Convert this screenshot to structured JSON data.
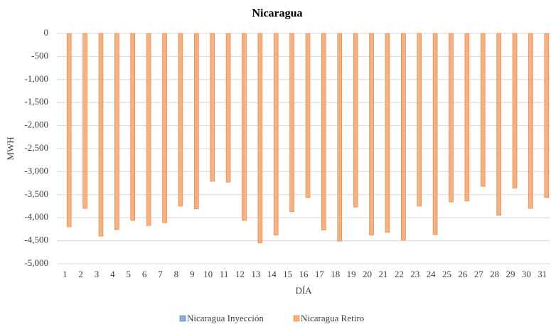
{
  "chart_data": {
    "type": "bar",
    "title": "Nicaragua",
    "x_label": "DÍA",
    "y_label": "MWH",
    "categories": [
      "1",
      "2",
      "3",
      "4",
      "5",
      "6",
      "7",
      "8",
      "9",
      "10",
      "11",
      "12",
      "13",
      "14",
      "15",
      "16",
      "17",
      "18",
      "19",
      "20",
      "21",
      "22",
      "23",
      "24",
      "25",
      "26",
      "27",
      "28",
      "29",
      "30",
      "31"
    ],
    "series": [
      {
        "name": "Nicaragua Inyección",
        "color": "#8faadc",
        "values": [
          0,
          0,
          0,
          0,
          0,
          0,
          0,
          0,
          0,
          0,
          0,
          0,
          0,
          0,
          0,
          0,
          0,
          0,
          0,
          0,
          0,
          0,
          0,
          0,
          0,
          0,
          0,
          0,
          0,
          0,
          0
        ]
      },
      {
        "name": "Nicaragua Retiro",
        "color": "#f4b183",
        "values": [
          -4200,
          -3800,
          -4400,
          -4260,
          -4060,
          -4170,
          -4110,
          -3750,
          -3810,
          -3210,
          -3230,
          -4060,
          -4550,
          -4380,
          -3870,
          -3560,
          -4270,
          -4510,
          -3770,
          -4380,
          -4320,
          -4490,
          -3750,
          -4370,
          -3660,
          -3640,
          -3320,
          -3950,
          -3360,
          -3800,
          -3560
        ]
      }
    ],
    "ylim": [
      -5000,
      0
    ],
    "yticks": [
      0,
      -500,
      {
        "value": -1000,
        "label": "-1,000"
      },
      {
        "value": -1500,
        "label": "-1,500"
      },
      {
        "value": -2000,
        "label": "-2,000"
      },
      {
        "value": -2500,
        "label": "-2,500"
      },
      {
        "value": -3000,
        "label": "-3,000"
      },
      {
        "value": -3500,
        "label": "-3,500"
      },
      {
        "value": -4000,
        "label": "-4,000"
      },
      {
        "value": -4500,
        "label": "-4,500"
      },
      {
        "value": -5000,
        "label": "-5,000"
      }
    ],
    "grid": true
  }
}
